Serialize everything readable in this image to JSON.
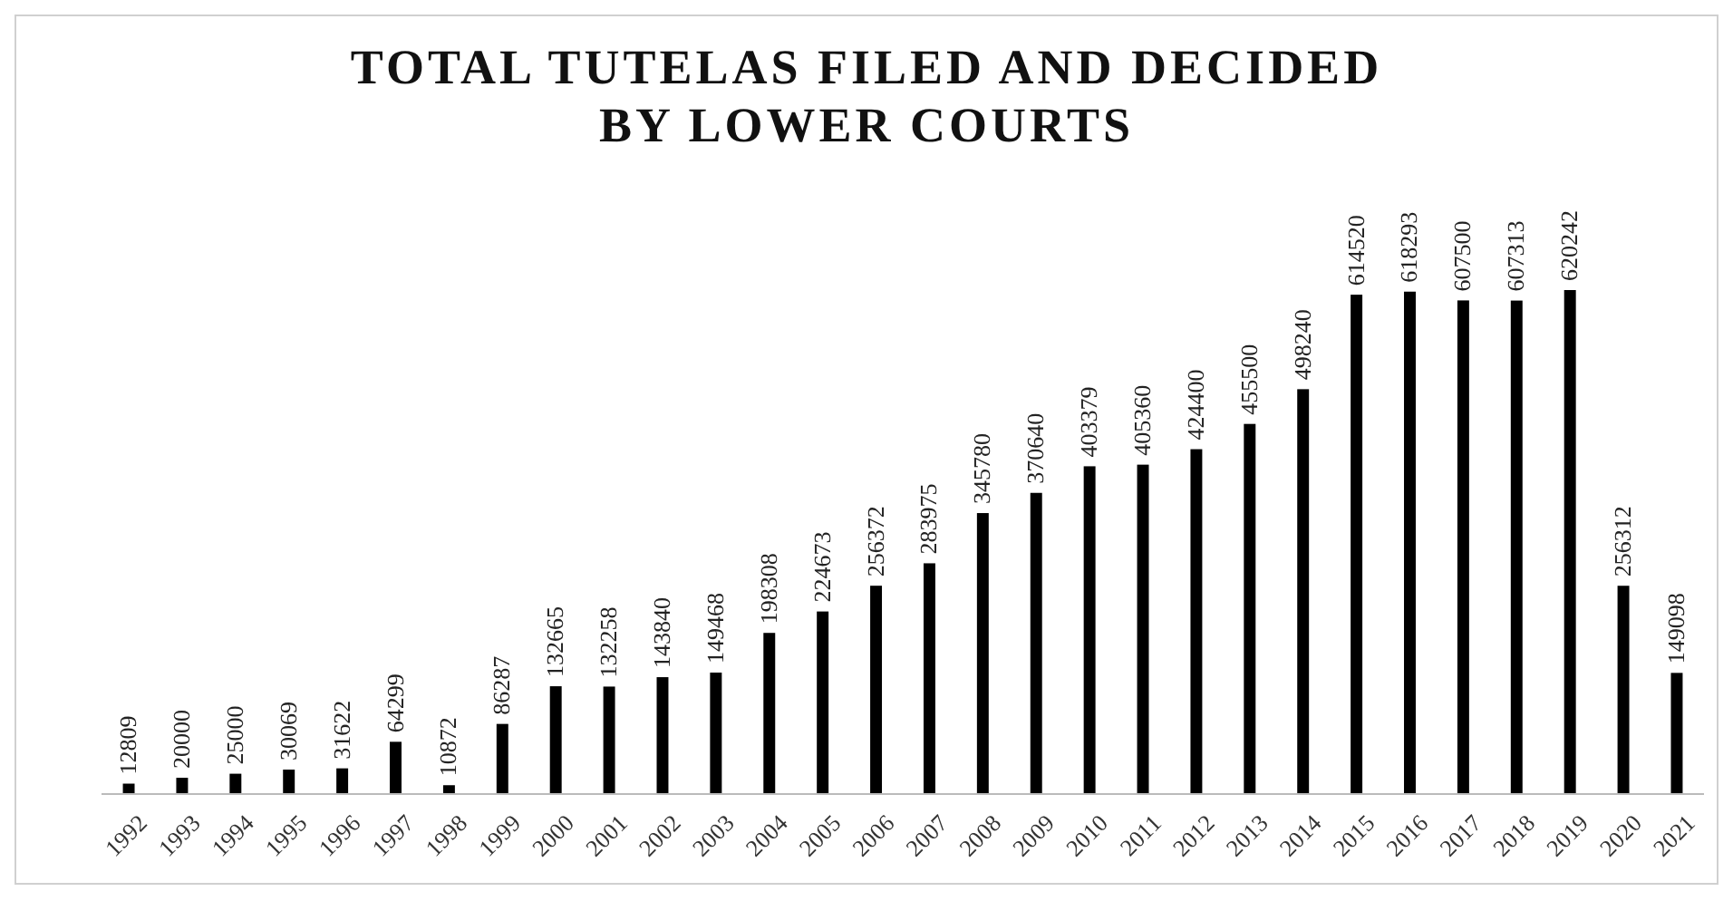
{
  "chart_data": {
    "type": "bar",
    "title": "TOTAL TUTELAS FILED AND DECIDED BY LOWER COURTS",
    "categories": [
      "1992",
      "1993",
      "1994",
      "1995",
      "1996",
      "1997",
      "1998",
      "1999",
      "2000",
      "2001",
      "2002",
      "2003",
      "2004",
      "2005",
      "2006",
      "2007",
      "2008",
      "2009",
      "2010",
      "2011",
      "2012",
      "2013",
      "2014",
      "2015",
      "2016",
      "2017",
      "2018",
      "2019",
      "2020",
      "2021"
    ],
    "values": [
      12809,
      20000,
      25000,
      30069,
      31622,
      64299,
      10872,
      86287,
      132665,
      132258,
      143840,
      149468,
      198308,
      224673,
      256372,
      283975,
      345780,
      370640,
      403379,
      405360,
      424400,
      455500,
      498240,
      614520,
      618293,
      607500,
      607313,
      620242,
      256312,
      149098
    ],
    "color": "#000000",
    "data_labels": true
  }
}
